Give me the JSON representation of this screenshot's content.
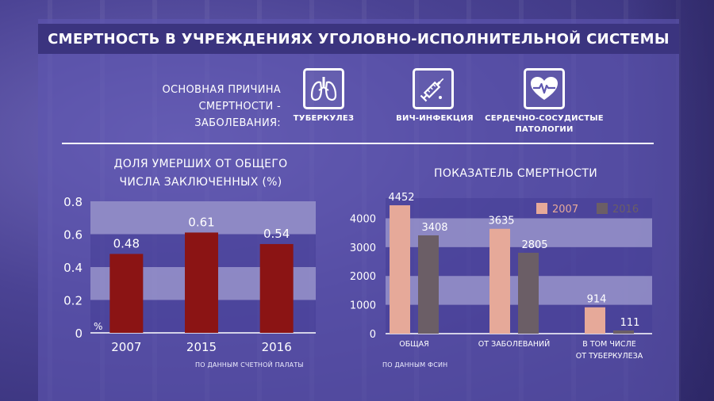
{
  "header": {
    "title": "СМЕРТНОСТЬ В УЧРЕЖДЕНИЯХ УГОЛОВНО-ИСПОЛНИТЕЛЬНОЙ СИСТЕМЫ"
  },
  "causes": {
    "label_line1": "ОСНОВНАЯ ПРИЧИНА",
    "label_line2": "СМЕРТНОСТИ - ЗАБОЛЕВАНИЯ:",
    "items": [
      {
        "icon": "lungs-icon",
        "label_line1": "ТУБЕРКУЛЕЗ",
        "label_line2": ""
      },
      {
        "icon": "syringe-icon",
        "label_line1": "ВИЧ-ИНФЕКЦИЯ",
        "label_line2": ""
      },
      {
        "icon": "heart-pulse-icon",
        "label_line1": "СЕРДЕЧНО-СОСУДИСТЫЕ",
        "label_line2": "ПАТОЛОГИИ"
      }
    ]
  },
  "chart_data": [
    {
      "type": "bar",
      "title_line1": "ДОЛЯ УМЕРШИХ ОТ ОБЩЕГО",
      "title_line2": "ЧИСЛА ЗАКЛЮЧЕННЫХ (%)",
      "categories": [
        "2007",
        "2015",
        "2016"
      ],
      "values": [
        0.48,
        0.61,
        0.54
      ],
      "value_labels": [
        "0.48",
        "0.61",
        "0.54"
      ],
      "y_ticks": [
        "0",
        "0.2",
        "0.4",
        "0.6",
        "0.8"
      ],
      "ylim": [
        0,
        0.8
      ],
      "unit_label": "%",
      "bar_color": "#8b1414",
      "band_color": "#a39fd2",
      "source": "ПО ДАННЫМ СЧЕТНОЙ ПАЛАТЫ"
    },
    {
      "type": "bar",
      "title": "ПОКАЗАТЕЛЬ СМЕРТНОСТИ",
      "categories": [
        {
          "line1": "ОБЩАЯ",
          "line2": ""
        },
        {
          "line1": "ОТ ЗАБОЛЕВАНИЙ",
          "line2": ""
        },
        {
          "line1": "В ТОМ ЧИСЛЕ",
          "line2": "ОТ ТУБЕРКУЛЕЗА"
        }
      ],
      "series": [
        {
          "name": "2007",
          "values": [
            4452,
            3635,
            914
          ],
          "value_labels": [
            "4452",
            "3635",
            "914"
          ],
          "color": "#e6a999"
        },
        {
          "name": "2016",
          "values": [
            3408,
            2805,
            111
          ],
          "value_labels": [
            "3408",
            "2805",
            "111"
          ],
          "color": "#6b5e66"
        }
      ],
      "y_ticks": [
        "0",
        "1000",
        "2000",
        "3000",
        "4000"
      ],
      "ylim": [
        0,
        4700
      ],
      "band_color": "#a39fd2",
      "legend_position": "top-right",
      "source": "ПО ДАННЫМ ФСИН"
    }
  ]
}
